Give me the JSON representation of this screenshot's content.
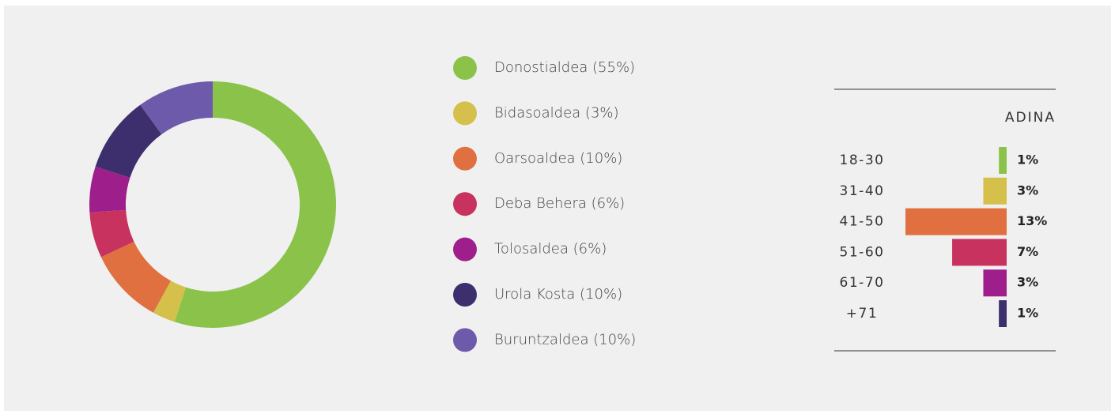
{
  "chart_data": [
    {
      "type": "donut",
      "categories": [
        "Donostialdea (55%)",
        "Bidasoaldea (3%)",
        "Oarsoaldea (10%)",
        "Deba Behera (6%)",
        "Tolosaldea (6%)",
        "Urola Kosta (10%)",
        "Buruntzaldea (10%)"
      ],
      "values": [
        55,
        3,
        10,
        6,
        6,
        10,
        10
      ],
      "colors": [
        "#8bc34a",
        "#d4c04a",
        "#e07040",
        "#c8325e",
        "#9e1f8c",
        "#3d2f6e",
        "#6e5aaa"
      ]
    },
    {
      "type": "bar",
      "title": "ADINA",
      "categories": [
        "18-30",
        "31-40",
        "41-50",
        "51-60",
        "61-70",
        "+71"
      ],
      "values": [
        1,
        3,
        13,
        7,
        3,
        1
      ],
      "value_labels": [
        "1%",
        "3%",
        "13%",
        "7%",
        "3%",
        "1%"
      ],
      "colors": [
        "#8bc34a",
        "#d4c04a",
        "#e07040",
        "#c8325e",
        "#9e1f8c",
        "#3d2f6e"
      ]
    }
  ]
}
